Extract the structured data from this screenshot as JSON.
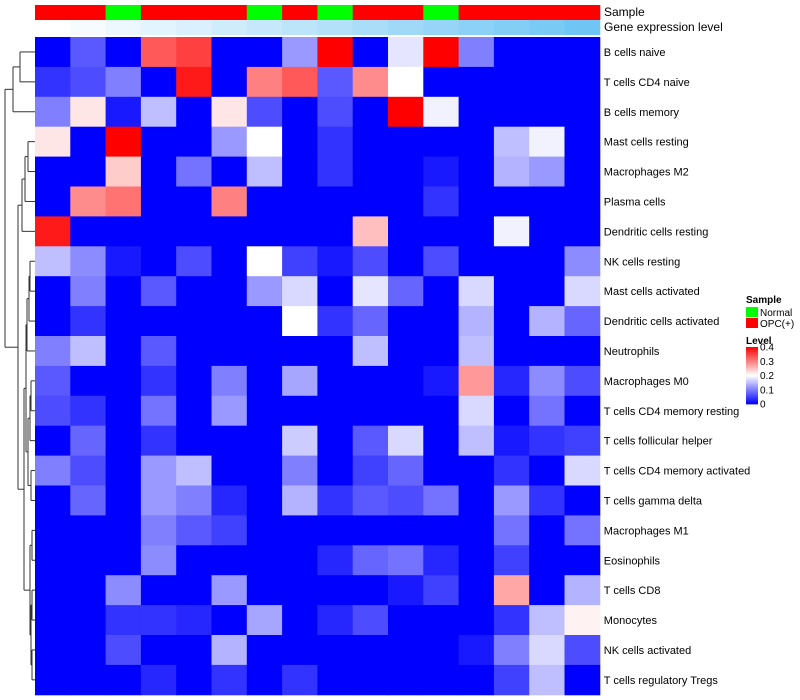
{
  "chart_data": {
    "type": "heatmap",
    "annotation_tracks": [
      {
        "name": "Sample",
        "values": [
          "OPC(+)",
          "OPC(+)",
          "Normal",
          "OPC(+)",
          "OPC(+)",
          "OPC(+)",
          "Normal",
          "OPC(+)",
          "Normal",
          "OPC(+)",
          "OPC(+)",
          "Normal",
          "OPC(+)",
          "OPC(+)",
          "OPC(+)",
          "OPC(+)"
        ]
      },
      {
        "name": "Gene expression level",
        "values": [
          0.0,
          0.06,
          0.13,
          0.2,
          0.26,
          0.33,
          0.4,
          0.46,
          0.53,
          0.6,
          0.66,
          0.73,
          0.8,
          0.86,
          0.93,
          1.0
        ]
      }
    ],
    "rows": [
      "B cells naive",
      "T cells CD4 naive",
      "B cells memory",
      "Mast cells resting",
      "Macrophages M2",
      "Plasma cells",
      "Dendritic cells resting",
      "NK cells resting",
      "Mast cells activated",
      "Dendritic cells activated",
      "Neutrophils",
      "Macrophages M0",
      "T cells CD4 memory resting",
      "T cells follicular helper",
      "T cells CD4 memory activated",
      "T cells gamma delta",
      "Macrophages M1",
      "Eosinophils",
      "T cells CD8",
      "Monocytes",
      "NK cells activated",
      "T cells regulatory  Tregs"
    ],
    "values": [
      [
        0,
        0.07,
        0,
        0.33,
        0.35,
        0,
        0,
        0.12,
        0.4,
        0,
        0.18,
        0.4,
        0.1,
        0,
        0,
        0
      ],
      [
        0.04,
        0.06,
        0.1,
        0,
        0.38,
        0,
        0.3,
        0.33,
        0.07,
        0.29,
        0.2,
        0,
        0,
        0,
        0,
        0
      ],
      [
        0.1,
        0.22,
        0.02,
        0.15,
        0,
        0.22,
        0.06,
        0,
        0.06,
        0,
        0.4,
        0.19,
        0,
        0,
        0,
        0
      ],
      [
        0.22,
        0,
        0.4,
        0,
        0,
        0.12,
        0.2,
        0,
        0.04,
        0,
        0,
        0,
        0,
        0.15,
        0.19,
        0
      ],
      [
        0,
        0,
        0.24,
        0,
        0.09,
        0,
        0.15,
        0,
        0.04,
        0,
        0,
        0.02,
        0,
        0.14,
        0.12,
        0
      ],
      [
        0,
        0.29,
        0.31,
        0,
        0,
        0.3,
        0,
        0,
        0,
        0,
        0,
        0.04,
        0,
        0,
        0,
        0
      ],
      [
        0.38,
        0,
        0,
        0,
        0,
        0,
        0,
        0,
        0,
        0.25,
        0,
        0,
        0,
        0.19,
        0,
        0
      ],
      [
        0.15,
        0.11,
        0.02,
        0,
        0.06,
        0,
        0.2,
        0.05,
        0.02,
        0.06,
        0,
        0.06,
        0,
        0,
        0,
        0.11
      ],
      [
        0,
        0.1,
        0,
        0.07,
        0,
        0,
        0.12,
        0.17,
        0,
        0.18,
        0.08,
        0,
        0.17,
        0,
        0,
        0.17
      ],
      [
        0,
        0.04,
        0,
        0,
        0,
        0,
        0,
        0.2,
        0.04,
        0.08,
        0,
        0,
        0.14,
        0,
        0.14,
        0.08
      ],
      [
        0.1,
        0.15,
        0,
        0.07,
        0,
        0,
        0,
        0,
        0,
        0.15,
        0,
        0,
        0.15,
        0,
        0,
        0
      ],
      [
        0.07,
        0,
        0,
        0.04,
        0,
        0.1,
        0,
        0.13,
        0,
        0,
        0,
        0.02,
        0.28,
        0.03,
        0.11,
        0.06
      ],
      [
        0.06,
        0.04,
        0,
        0.09,
        0,
        0.12,
        0,
        0,
        0,
        0,
        0,
        0,
        0.17,
        0,
        0.09,
        0
      ],
      [
        0,
        0.08,
        0,
        0.04,
        0,
        0,
        0,
        0.16,
        0,
        0.07,
        0.17,
        0,
        0.15,
        0.02,
        0.04,
        0.05
      ],
      [
        0.1,
        0.06,
        0,
        0.12,
        0.15,
        0,
        0,
        0.1,
        0,
        0.05,
        0.08,
        0,
        0,
        0.04,
        0,
        0.17
      ],
      [
        0,
        0.08,
        0,
        0.12,
        0.1,
        0.03,
        0,
        0.14,
        0.04,
        0.07,
        0.06,
        0.09,
        0,
        0.12,
        0.04,
        0
      ],
      [
        0,
        0,
        0,
        0.1,
        0.07,
        0.05,
        0,
        0,
        0,
        0,
        0,
        0,
        0,
        0.09,
        0,
        0.09
      ],
      [
        0,
        0,
        0,
        0.11,
        0,
        0,
        0,
        0,
        0.03,
        0.08,
        0.09,
        0.03,
        0,
        0.05,
        0,
        0
      ],
      [
        0,
        0,
        0.11,
        0,
        0,
        0.12,
        0,
        0,
        0,
        0,
        0.02,
        0.05,
        0,
        0.27,
        0,
        0.14
      ],
      [
        0,
        0,
        0.04,
        0.04,
        0.03,
        0,
        0.13,
        0,
        0.03,
        0.06,
        0,
        0,
        0,
        0.04,
        0.15,
        0.21
      ],
      [
        0,
        0,
        0.06,
        0,
        0,
        0.14,
        0,
        0,
        0,
        0,
        0,
        0,
        0.02,
        0.1,
        0.17,
        0.06
      ],
      [
        0,
        0,
        0,
        0.03,
        0,
        0.04,
        0,
        0.04,
        0,
        0,
        0,
        0,
        0,
        0.05,
        0.15,
        0
      ]
    ],
    "color_scale": {
      "min": 0,
      "mid": 0.2,
      "max": 0.4,
      "low_color": "#0000ff",
      "mid_color": "#ffffff",
      "high_color": "#ff0000"
    },
    "legend": {
      "sample_title": "Sample",
      "sample_entries": [
        {
          "label": "Normal",
          "color": "#00ff00"
        },
        {
          "label": "OPC(+)",
          "color": "#ff0000"
        }
      ],
      "level_title": "Level",
      "level_ticks": [
        0.4,
        0.3,
        0.2,
        0.1,
        0
      ],
      "placement": "right"
    },
    "gene_track_colors": {
      "low": "#ffffff",
      "high": "#6fc6f4"
    }
  }
}
